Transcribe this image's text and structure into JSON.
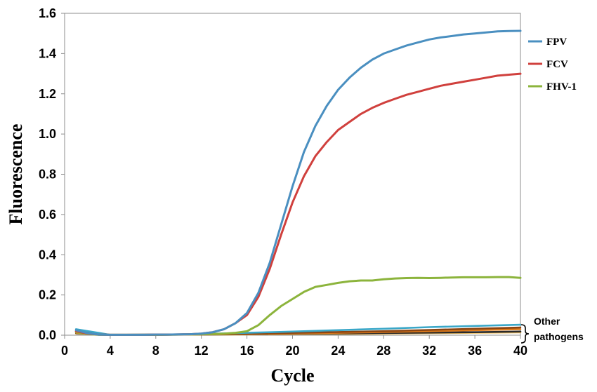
{
  "chart_data": {
    "type": "line",
    "xlabel": "Cycle",
    "ylabel": "Fluorescence",
    "xlim": [
      0,
      40
    ],
    "ylim": [
      0,
      1.6
    ],
    "xticks": [
      0,
      4,
      8,
      12,
      16,
      20,
      24,
      28,
      32,
      36,
      40
    ],
    "yticks": [
      0.0,
      0.2,
      0.4,
      0.6,
      0.8,
      1.0,
      1.2,
      1.4,
      1.6
    ],
    "ytick_labels": [
      "0.0",
      "0.2",
      "0.4",
      "0.6",
      "0.8",
      "1.0",
      "1.2",
      "1.4",
      "1.6"
    ],
    "grid": false,
    "legend_position": "right",
    "series": [
      {
        "name": "FPV",
        "color": "#4a8fc0",
        "x": [
          1,
          2,
          3,
          4,
          5,
          6,
          7,
          8,
          9,
          10,
          11,
          12,
          13,
          14,
          15,
          16,
          17,
          18,
          19,
          20,
          21,
          22,
          23,
          24,
          25,
          26,
          27,
          28,
          29,
          30,
          31,
          32,
          33,
          34,
          35,
          36,
          37,
          38,
          39,
          40
        ],
        "y": [
          0.025,
          0.01,
          0.003,
          0.002,
          0.002,
          0.002,
          0.002,
          0.003,
          0.003,
          0.004,
          0.005,
          0.008,
          0.015,
          0.03,
          0.06,
          0.11,
          0.21,
          0.36,
          0.55,
          0.74,
          0.91,
          1.04,
          1.14,
          1.22,
          1.28,
          1.33,
          1.37,
          1.4,
          1.42,
          1.44,
          1.455,
          1.47,
          1.48,
          1.487,
          1.495,
          1.5,
          1.505,
          1.51,
          1.512,
          1.513
        ]
      },
      {
        "name": "FCV",
        "color": "#d0403d",
        "x": [
          1,
          2,
          3,
          4,
          5,
          6,
          7,
          8,
          9,
          10,
          11,
          12,
          13,
          14,
          15,
          16,
          17,
          18,
          19,
          20,
          21,
          22,
          23,
          24,
          25,
          26,
          27,
          28,
          29,
          30,
          31,
          32,
          33,
          34,
          35,
          36,
          37,
          38,
          39,
          40
        ],
        "y": [
          0.02,
          0.008,
          0.003,
          0.002,
          0.002,
          0.002,
          0.002,
          0.003,
          0.003,
          0.004,
          0.005,
          0.008,
          0.015,
          0.03,
          0.06,
          0.1,
          0.19,
          0.33,
          0.5,
          0.66,
          0.79,
          0.89,
          0.96,
          1.02,
          1.06,
          1.1,
          1.13,
          1.155,
          1.175,
          1.195,
          1.21,
          1.225,
          1.24,
          1.25,
          1.26,
          1.27,
          1.28,
          1.29,
          1.295,
          1.3
        ]
      },
      {
        "name": "FHV-1",
        "color": "#8cb43c",
        "x": [
          1,
          2,
          3,
          4,
          5,
          6,
          7,
          8,
          9,
          10,
          11,
          12,
          13,
          14,
          15,
          16,
          17,
          18,
          19,
          20,
          21,
          22,
          23,
          24,
          25,
          26,
          27,
          28,
          29,
          30,
          31,
          32,
          33,
          34,
          35,
          36,
          37,
          38,
          39,
          40
        ],
        "y": [
          0.015,
          0.006,
          0.002,
          0.002,
          0.002,
          0.002,
          0.002,
          0.002,
          0.003,
          0.003,
          0.004,
          0.005,
          0.006,
          0.008,
          0.012,
          0.02,
          0.05,
          0.1,
          0.145,
          0.18,
          0.215,
          0.24,
          0.25,
          0.26,
          0.268,
          0.272,
          0.272,
          0.278,
          0.282,
          0.284,
          0.285,
          0.284,
          0.285,
          0.287,
          0.288,
          0.288,
          0.288,
          0.289,
          0.289,
          0.285
        ]
      },
      {
        "color": "#3aa7c8",
        "x": [
          1,
          4,
          8,
          12,
          16,
          20,
          24,
          28,
          32,
          36,
          40
        ],
        "y": [
          0.03,
          0.002,
          0.003,
          0.006,
          0.012,
          0.018,
          0.025,
          0.032,
          0.04,
          0.046,
          0.052
        ]
      },
      {
        "color": "#8b4513",
        "x": [
          1,
          4,
          8,
          12,
          16,
          20,
          24,
          28,
          32,
          36,
          40
        ],
        "y": [
          0.02,
          0.002,
          0.003,
          0.005,
          0.008,
          0.012,
          0.016,
          0.02,
          0.026,
          0.032,
          0.038
        ]
      },
      {
        "color": "#e07b1a",
        "x": [
          1,
          4,
          8,
          12,
          16,
          20,
          24,
          28,
          32,
          36,
          40
        ],
        "y": [
          0.012,
          0.002,
          0.002,
          0.004,
          0.006,
          0.009,
          0.012,
          0.016,
          0.02,
          0.025,
          0.03
        ]
      },
      {
        "color": "#2a2a2a",
        "x": [
          1,
          4,
          8,
          12,
          16,
          20,
          24,
          28,
          32,
          36,
          40
        ],
        "y": [
          0.01,
          0.002,
          0.002,
          0.003,
          0.005,
          0.007,
          0.009,
          0.011,
          0.013,
          0.015,
          0.018
        ]
      },
      {
        "color": "#f0c060",
        "x": [
          1,
          4,
          8,
          12,
          16,
          20,
          24,
          28,
          32,
          36,
          40
        ],
        "y": [
          0.008,
          0.001,
          0.002,
          0.003,
          0.004,
          0.005,
          0.006,
          0.008,
          0.01,
          0.012,
          0.014
        ]
      }
    ],
    "legend": [
      "FPV",
      "FCV",
      "FHV-1"
    ],
    "annotation": {
      "line1": "Other",
      "line2": "pathogens"
    }
  }
}
